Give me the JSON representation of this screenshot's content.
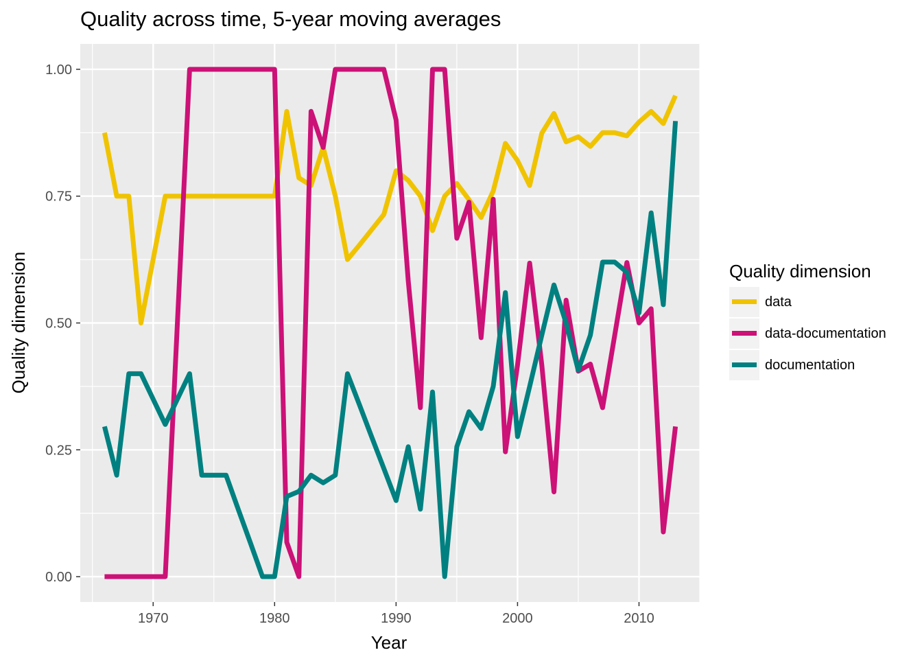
{
  "chart_data": {
    "type": "line",
    "title": "Quality across time, 5-year moving averages",
    "xlabel": "Year",
    "ylabel": "Quality dimension",
    "xlim": [
      1964,
      2015
    ],
    "ylim": [
      -0.05,
      1.05
    ],
    "xticks": [
      1970,
      1980,
      1990,
      2000,
      2010
    ],
    "yticks": [
      0.0,
      0.25,
      0.5,
      0.75,
      1.0
    ],
    "ytick_labels": [
      "0.00",
      "0.25",
      "0.50",
      "0.75",
      "1.00"
    ],
    "grid": true,
    "legend_title": "Quality dimension",
    "legend_position": "right",
    "x": [
      1966,
      1967,
      1968,
      1969,
      1970,
      1971,
      1972,
      1973,
      1974,
      1975,
      1976,
      1977,
      1978,
      1979,
      1980,
      1981,
      1982,
      1983,
      1984,
      1985,
      1986,
      1987,
      1988,
      1989,
      1990,
      1991,
      1992,
      1993,
      1994,
      1995,
      1996,
      1997,
      1998,
      1999,
      2000,
      2001,
      2002,
      2003,
      2004,
      2005,
      2006,
      2007,
      2008,
      2009,
      2010,
      2011,
      2012,
      2013
    ],
    "series": [
      {
        "name": "data",
        "color": "#F0C300",
        "values": [
          0.875,
          0.75,
          0.75,
          0.5,
          0.625,
          0.75,
          0.75,
          0.75,
          0.75,
          0.75,
          0.75,
          0.75,
          0.75,
          0.75,
          0.75,
          0.917,
          0.786,
          0.771,
          0.846,
          0.75,
          0.625,
          0.654,
          0.684,
          0.714,
          0.8,
          0.781,
          0.75,
          0.682,
          0.75,
          0.775,
          0.743,
          0.708,
          0.76,
          0.854,
          0.82,
          0.771,
          0.874,
          0.913,
          0.857,
          0.867,
          0.848,
          0.875,
          0.875,
          0.869,
          0.896,
          0.917,
          0.893,
          0.948
        ]
      },
      {
        "name": "data-documentation",
        "color": "#CC1177",
        "values": [
          0.0,
          0.0,
          0.0,
          0.0,
          0.0,
          0.0,
          0.5,
          1.0,
          1.0,
          1.0,
          1.0,
          1.0,
          1.0,
          1.0,
          1.0,
          0.068,
          0.0,
          0.917,
          0.846,
          1.0,
          1.0,
          1.0,
          1.0,
          1.0,
          0.9,
          0.583,
          0.333,
          1.0,
          1.0,
          0.667,
          0.738,
          0.471,
          0.744,
          0.246,
          0.417,
          0.618,
          0.417,
          0.167,
          0.545,
          0.405,
          0.419,
          0.333,
          0.476,
          0.619,
          0.5,
          0.528,
          0.088,
          0.296
        ]
      },
      {
        "name": "documentation",
        "color": "#008080",
        "values": [
          0.296,
          0.2,
          0.4,
          0.4,
          0.35,
          0.3,
          0.35,
          0.4,
          0.2,
          0.2,
          0.2,
          0.133,
          0.067,
          0.0,
          0.0,
          0.158,
          0.168,
          0.2,
          0.185,
          0.2,
          0.4,
          0.338,
          0.275,
          0.213,
          0.15,
          0.256,
          0.133,
          0.364,
          0.0,
          0.256,
          0.325,
          0.292,
          0.375,
          0.56,
          0.276,
          0.375,
          0.476,
          0.575,
          0.5,
          0.407,
          0.476,
          0.62,
          0.62,
          0.6,
          0.52,
          0.717,
          0.536,
          0.898
        ]
      }
    ]
  }
}
